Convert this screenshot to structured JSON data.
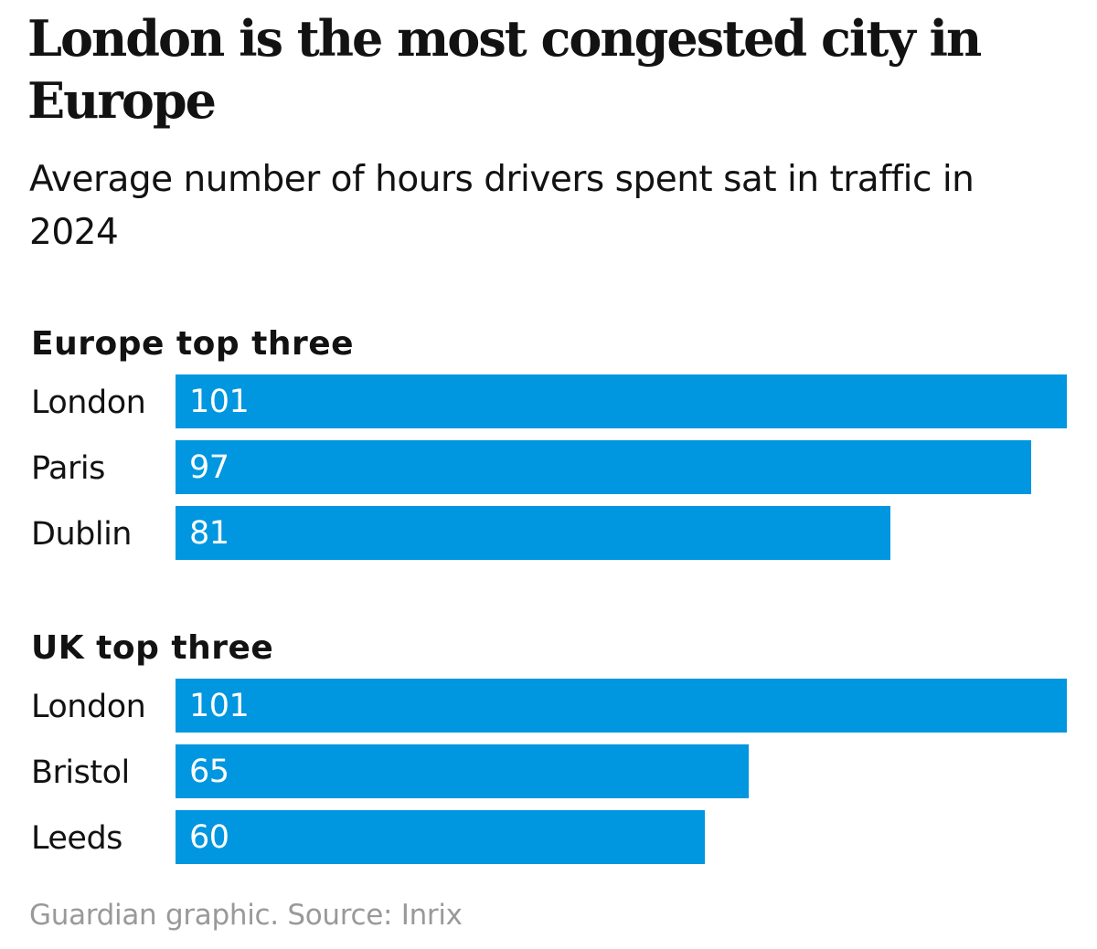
{
  "chart_data": {
    "type": "bar",
    "title": "London is the most congested city in Europe",
    "subtitle": "Average number of hours drivers spent sat in traffic in 2024",
    "source": "Guardian graphic. Source: Inrix",
    "colors": {
      "bar": "#0096e0",
      "value_text": "#ffffff",
      "source_text": "#999999"
    },
    "orientation": "horizontal",
    "xlim": [
      0,
      101
    ],
    "groups": [
      {
        "title": "Europe top three",
        "categories": [
          "London",
          "Paris",
          "Dublin"
        ],
        "values": [
          101,
          97,
          81
        ]
      },
      {
        "title": "UK top three",
        "categories": [
          "London",
          "Bristol",
          "Leeds"
        ],
        "values": [
          101,
          65,
          60
        ]
      }
    ]
  }
}
